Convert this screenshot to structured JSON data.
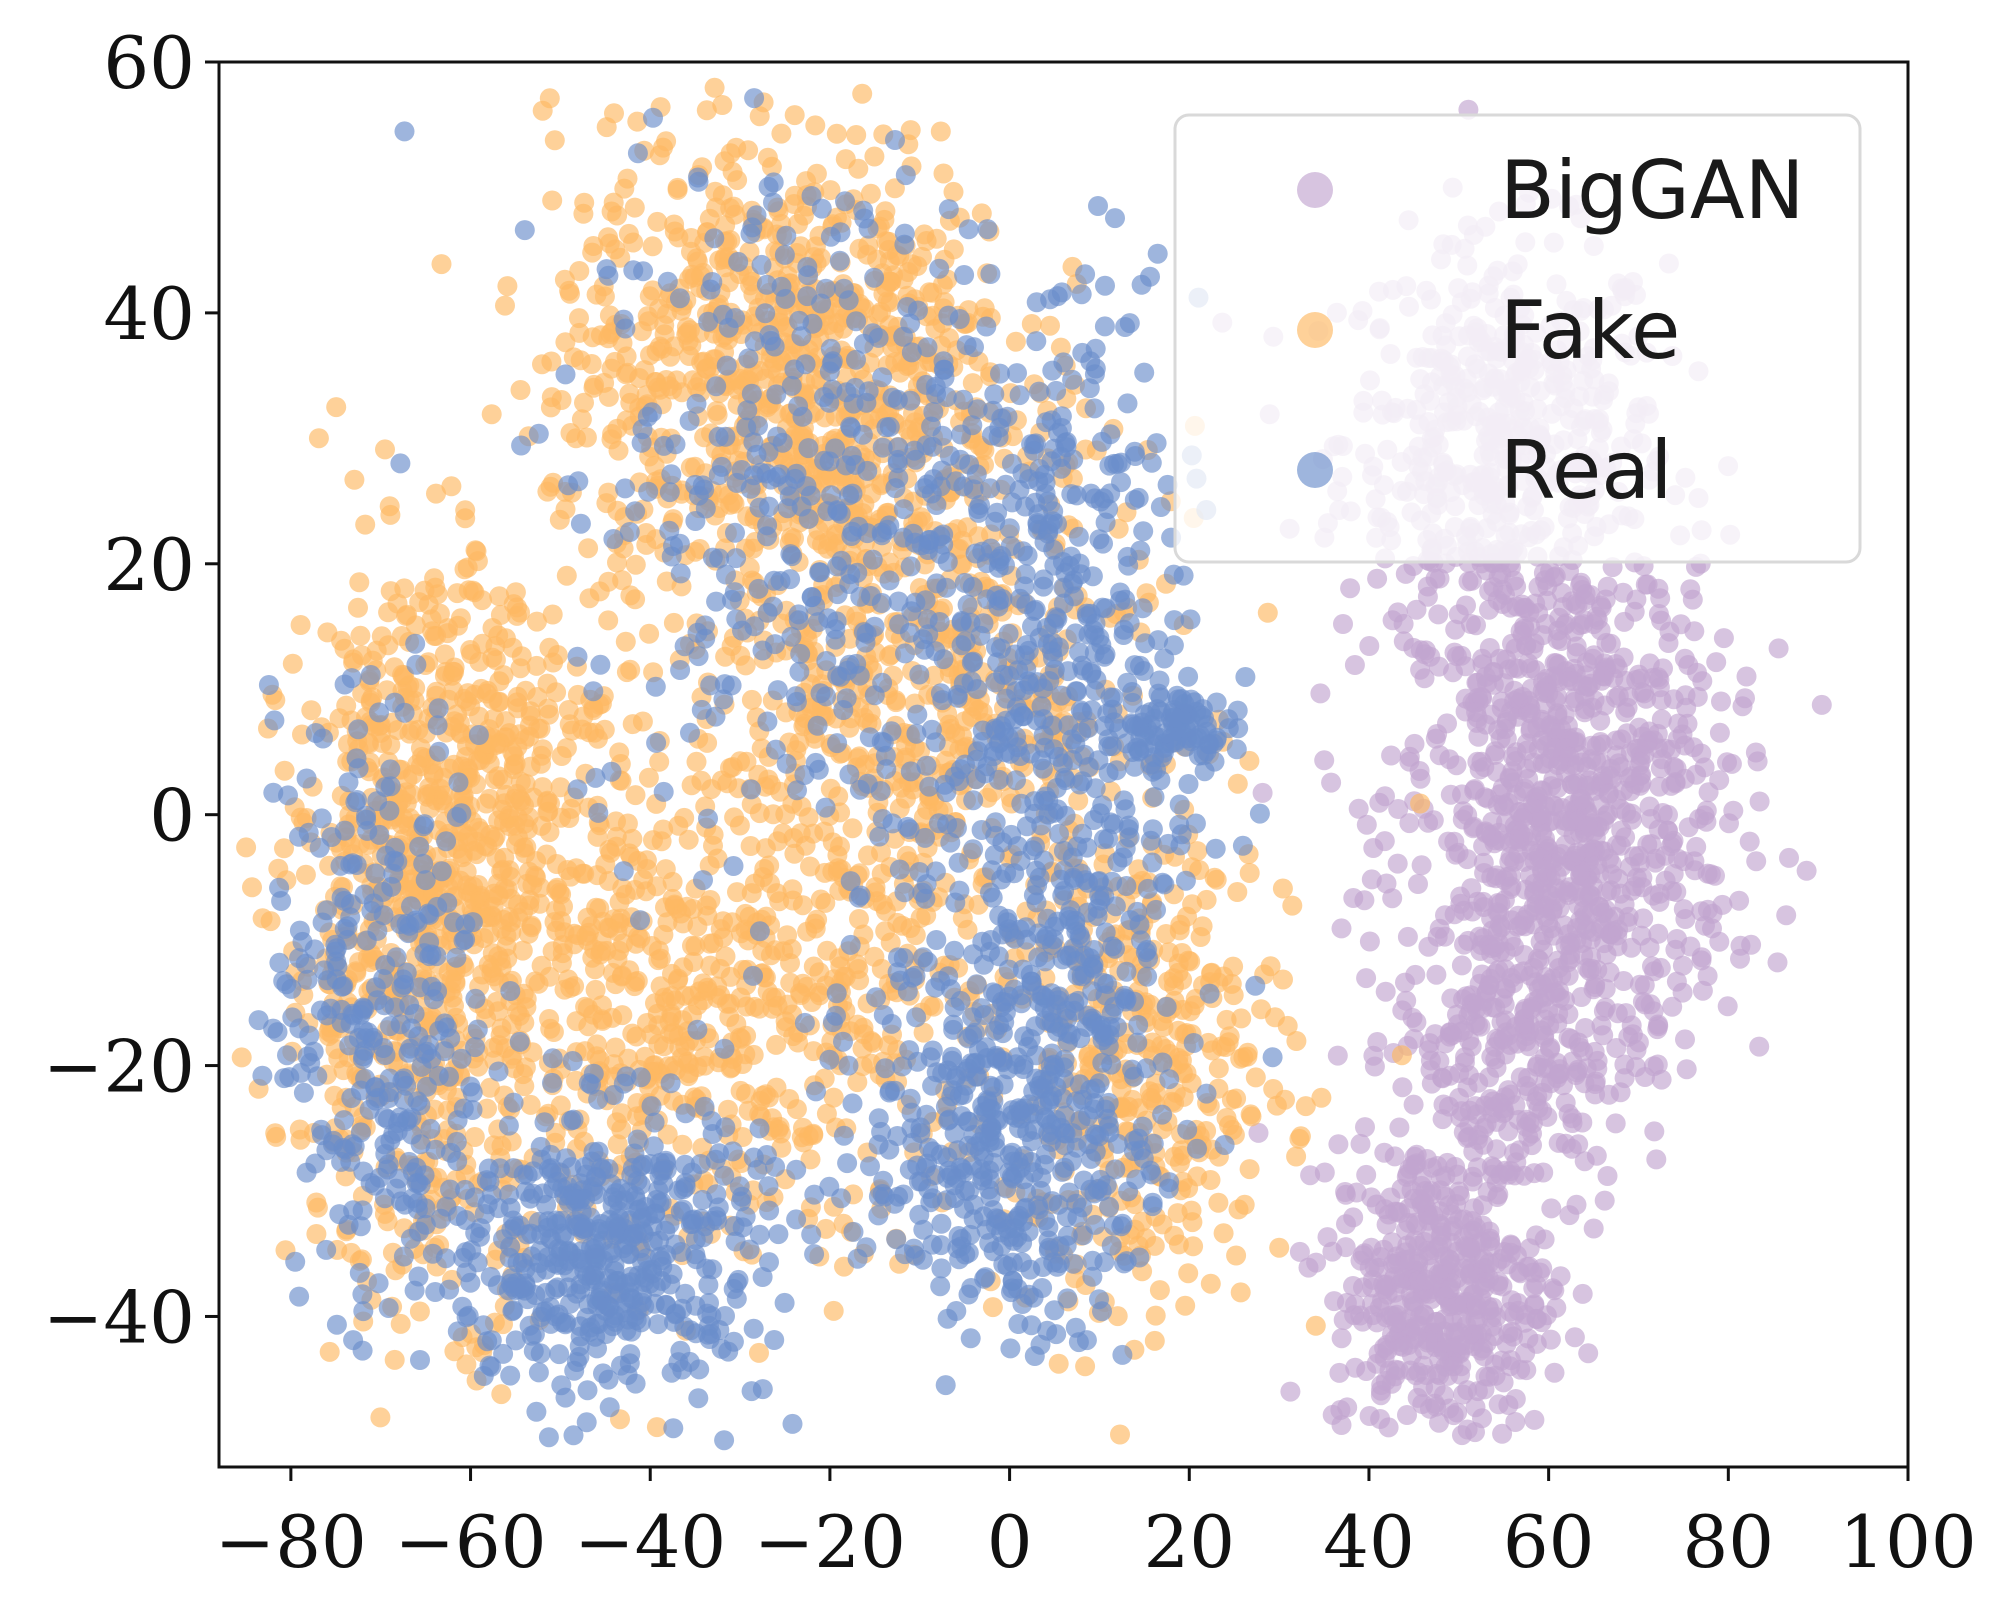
{
  "chart_data": {
    "type": "scatter",
    "title": "",
    "xlabel": "",
    "ylabel": "",
    "xlim": [
      -88,
      100
    ],
    "ylim": [
      -52,
      60
    ],
    "x_ticks": [
      -80,
      -60,
      -40,
      -20,
      0,
      20,
      40,
      60,
      80,
      100
    ],
    "y_ticks": [
      -40,
      -20,
      0,
      20,
      40,
      60
    ],
    "x_tick_labels": [
      "−80",
      "−60",
      "−40",
      "−20",
      "0",
      "20",
      "40",
      "60",
      "80",
      "100"
    ],
    "y_tick_labels": [
      "−40",
      "−20",
      "0",
      "20",
      "40",
      "60"
    ],
    "grid": false,
    "legend": {
      "placement": "top-right"
    },
    "point_alpha": 0.65,
    "series": [
      {
        "name": "BigGAN",
        "color": "#c2a5cf",
        "clusters": [
          {
            "center": [
              55,
              30
            ],
            "spread": [
              9,
              8
            ],
            "count": 500
          },
          {
            "center": [
              62,
              0
            ],
            "spread": [
              9,
              11
            ],
            "count": 900
          },
          {
            "center": [
              55,
              -18
            ],
            "spread": [
              6,
              7
            ],
            "count": 250
          },
          {
            "center": [
              48,
              -38
            ],
            "spread": [
              6,
              6
            ],
            "count": 450
          }
        ]
      },
      {
        "name": "Fake",
        "color": "#fdb863",
        "clusters": [
          {
            "center": [
              -25,
              35
            ],
            "spread": [
              13,
              10
            ],
            "count": 900
          },
          {
            "center": [
              -10,
              10
            ],
            "spread": [
              13,
              10
            ],
            "count": 500
          },
          {
            "center": [
              -65,
              -10
            ],
            "spread": [
              8,
              14
            ],
            "count": 700
          },
          {
            "center": [
              -40,
              -15
            ],
            "spread": [
              10,
              10
            ],
            "count": 350
          },
          {
            "center": [
              -20,
              -15
            ],
            "spread": [
              10,
              10
            ],
            "count": 300
          },
          {
            "center": [
              15,
              -20
            ],
            "spread": [
              8,
              10
            ],
            "count": 400
          },
          {
            "center": [
              -60,
              5
            ],
            "spread": [
              8,
              8
            ],
            "count": 250
          }
        ]
      },
      {
        "name": "Real",
        "color": "#6a8dcb",
        "clusters": [
          {
            "center": [
              -45,
              -35
            ],
            "spread": [
              9,
              6
            ],
            "count": 500
          },
          {
            "center": [
              0,
              -25
            ],
            "spread": [
              8,
              8
            ],
            "count": 450
          },
          {
            "center": [
              5,
              5
            ],
            "spread": [
              8,
              18
            ],
            "count": 550
          },
          {
            "center": [
              -20,
              25
            ],
            "spread": [
              14,
              14
            ],
            "count": 450
          },
          {
            "center": [
              -70,
              -15
            ],
            "spread": [
              6,
              12
            ],
            "count": 300
          },
          {
            "center": [
              18,
              7
            ],
            "spread": [
              3,
              1.5
            ],
            "count": 80
          }
        ]
      }
    ]
  }
}
